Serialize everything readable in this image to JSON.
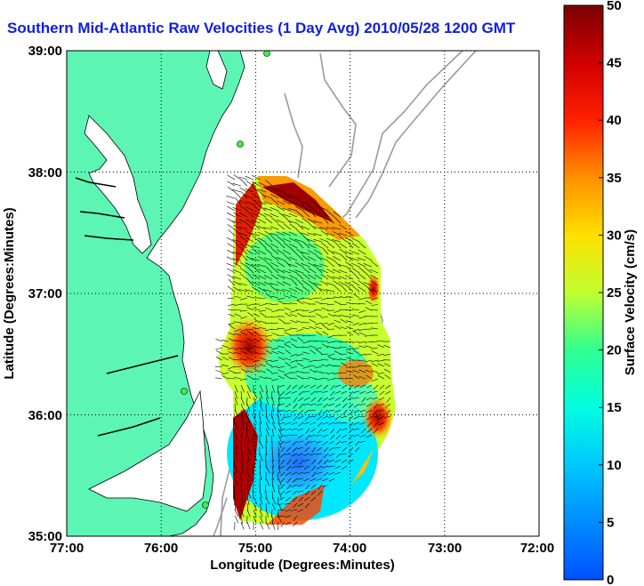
{
  "title": "Southern Mid-Atlantic Raw Velocities (1 Day Avg) 2010/05/28 1200 GMT",
  "x_axis": {
    "label": "Longitude (Degrees:Minutes)",
    "ticks": [
      "77:00",
      "76:00",
      "75:00",
      "74:00",
      "73:00",
      "72:00"
    ]
  },
  "y_axis": {
    "label": "Latitude (Degrees:Minutes)",
    "ticks": [
      "39:00",
      "38:00",
      "37:00",
      "36:00",
      "35:00"
    ]
  },
  "colorbar": {
    "label": "Surface Velocity (cm/s)",
    "ticks": [
      "0",
      "5",
      "10",
      "15",
      "20",
      "25",
      "30",
      "35",
      "40",
      "45",
      "50"
    ],
    "min": 0,
    "max": 50
  },
  "colors": {
    "land": "#5cf5b4",
    "title": "#1020e0",
    "grid": "#000000",
    "bathymetry": "#9a9a9a"
  },
  "chart_data": {
    "type": "heatmap",
    "title": "Southern Mid-Atlantic Raw Velocities (1 Day Avg) 2010/05/28 1200 GMT",
    "xlabel": "Longitude (Degrees:Minutes)",
    "ylabel": "Latitude (Degrees:Minutes)",
    "xlim": [
      -77,
      -72
    ],
    "ylim": [
      35,
      39
    ],
    "colorbar_range": [
      0,
      50
    ],
    "colorbar_unit": "cm/s",
    "grid": true,
    "features": [
      "land",
      "surface current vectors",
      "bathymetry contours",
      "radar sites"
    ]
  }
}
